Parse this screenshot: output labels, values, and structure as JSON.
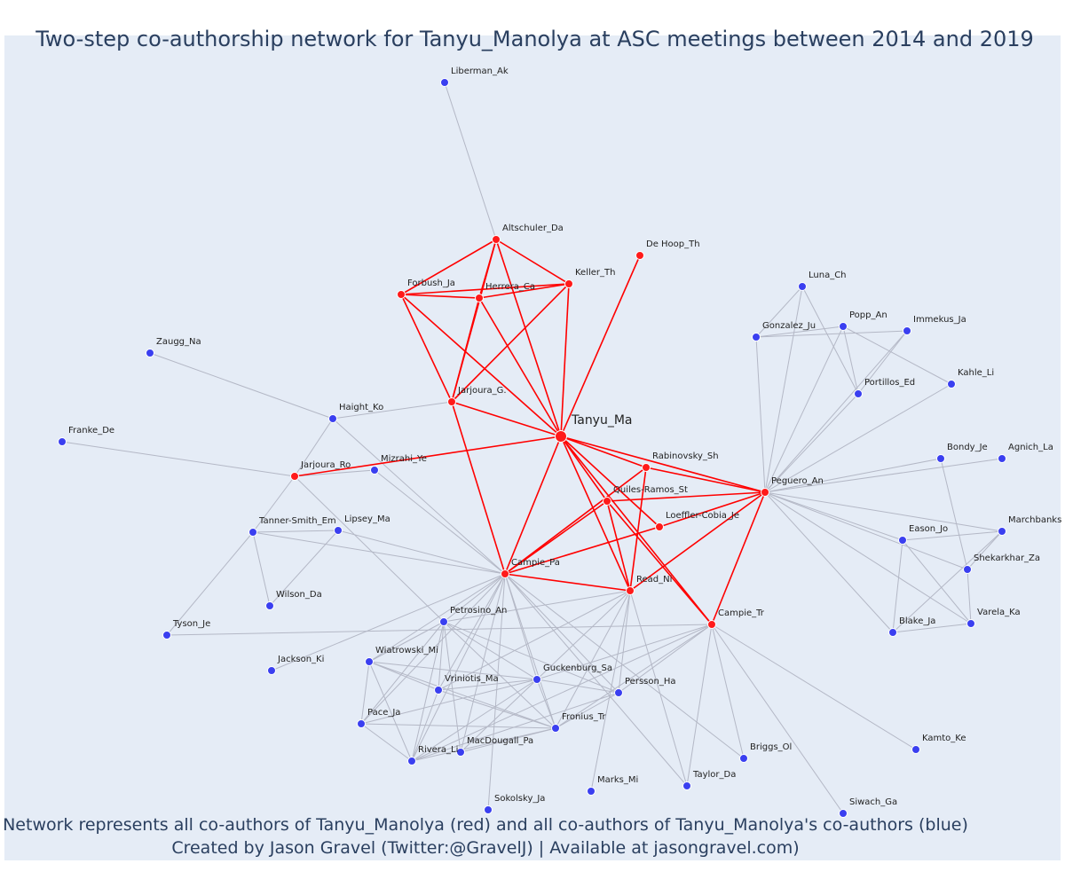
{
  "title": "Two-step co-authorship network for Tanyu_Manolya at ASC meetings between 2014 and 2019",
  "caption_line1": "Network represents all co-authors of Tanyu_Manolya (red) and all co-authors of Tanyu_Manolya's co-authors (blue)",
  "caption_line2": "Created by Jason Gravel (Twitter:@GravelJ) | Available at jasongravel.com)",
  "colors": {
    "background": "#e5ecf6",
    "coauthor": "#ff1a1a",
    "second_step": "#3a3ff0",
    "red_edge": "#ff0000",
    "gray_edge": "#b4b8c6",
    "node_outline": "#ffffff",
    "text": "#2a3f5f"
  },
  "nodes": [
    {
      "id": "Tanyu_Ma",
      "group": "center"
    },
    {
      "id": "Liberman_Ak",
      "group": "blue"
    },
    {
      "id": "Altschuler_Da",
      "group": "red"
    },
    {
      "id": "De Hoop_Th",
      "group": "red"
    },
    {
      "id": "Keller_Th",
      "group": "red"
    },
    {
      "id": "Forbush_Ja",
      "group": "red"
    },
    {
      "id": "Herrera_Ca",
      "group": "red"
    },
    {
      "id": "Jarjoura_G.",
      "group": "red"
    },
    {
      "id": "Zaugg_Na",
      "group": "blue"
    },
    {
      "id": "Haight_Ko",
      "group": "blue"
    },
    {
      "id": "Franke_De",
      "group": "blue"
    },
    {
      "id": "Jarjoura_Ro",
      "group": "red"
    },
    {
      "id": "Mizrahi_Ye",
      "group": "blue"
    },
    {
      "id": "Tanner-Smith_Em",
      "group": "blue"
    },
    {
      "id": "Lipsey_Ma",
      "group": "blue"
    },
    {
      "id": "Wilson_Da",
      "group": "blue"
    },
    {
      "id": "Tyson_Je",
      "group": "blue"
    },
    {
      "id": "Jackson_Ki",
      "group": "blue"
    },
    {
      "id": "Campie_Pa",
      "group": "red"
    },
    {
      "id": "Petrosino_An",
      "group": "blue"
    },
    {
      "id": "Wiatrowski_Mi",
      "group": "blue"
    },
    {
      "id": "Vriniotis_Ma",
      "group": "blue"
    },
    {
      "id": "Guckenburg_Sa",
      "group": "blue"
    },
    {
      "id": "Pace_Ja",
      "group": "blue"
    },
    {
      "id": "Fronius_Tr",
      "group": "blue"
    },
    {
      "id": "MacDougall_Pa",
      "group": "blue"
    },
    {
      "id": "Rivera_Li",
      "group": "blue"
    },
    {
      "id": "Sokolsky_Ja",
      "group": "blue"
    },
    {
      "id": "Marks_Mi",
      "group": "blue"
    },
    {
      "id": "Taylor_Da",
      "group": "blue"
    },
    {
      "id": "Briggs_Ol",
      "group": "blue"
    },
    {
      "id": "Persson_Ha",
      "group": "blue"
    },
    {
      "id": "Read_Ni",
      "group": "red"
    },
    {
      "id": "Campie_Tr",
      "group": "red"
    },
    {
      "id": "Rabinovsky_Sh",
      "group": "red"
    },
    {
      "id": "Quiles-Ramos_St",
      "group": "red"
    },
    {
      "id": "Loeffler-Cobia_Je",
      "group": "red"
    },
    {
      "id": "Peguero_An",
      "group": "red"
    },
    {
      "id": "Luna_Ch",
      "group": "blue"
    },
    {
      "id": "Popp_An",
      "group": "blue"
    },
    {
      "id": "Immekus_Ja",
      "group": "blue"
    },
    {
      "id": "Gonzalez_Ju",
      "group": "blue"
    },
    {
      "id": "Portillos_Ed",
      "group": "blue"
    },
    {
      "id": "Kahle_Li",
      "group": "blue"
    },
    {
      "id": "Bondy_Je",
      "group": "blue"
    },
    {
      "id": "Agnich_La",
      "group": "blue"
    },
    {
      "id": "Eason_Jo",
      "group": "blue"
    },
    {
      "id": "Marchbanks",
      "group": "blue"
    },
    {
      "id": "Shekarkhar_Za",
      "group": "blue"
    },
    {
      "id": "Blake_Ja",
      "group": "blue"
    },
    {
      "id": "Varela_Ka",
      "group": "blue"
    },
    {
      "id": "Kamto_Ke",
      "group": "blue"
    },
    {
      "id": "Siwach_Ga",
      "group": "blue"
    }
  ],
  "edges": [
    [
      "Tanyu_Ma",
      "Altschuler_Da"
    ],
    [
      "Tanyu_Ma",
      "De Hoop_Th"
    ],
    [
      "Tanyu_Ma",
      "Keller_Th"
    ],
    [
      "Tanyu_Ma",
      "Forbush_Ja"
    ],
    [
      "Tanyu_Ma",
      "Herrera_Ca"
    ],
    [
      "Tanyu_Ma",
      "Jarjoura_G."
    ],
    [
      "Tanyu_Ma",
      "Jarjoura_Ro"
    ],
    [
      "Tanyu_Ma",
      "Campie_Pa"
    ],
    [
      "Tanyu_Ma",
      "Read_Ni"
    ],
    [
      "Tanyu_Ma",
      "Campie_Tr"
    ],
    [
      "Tanyu_Ma",
      "Rabinovsky_Sh"
    ],
    [
      "Tanyu_Ma",
      "Quiles-Ramos_St"
    ],
    [
      "Tanyu_Ma",
      "Loeffler-Cobia_Je"
    ],
    [
      "Tanyu_Ma",
      "Peguero_An"
    ],
    [
      "Altschuler_Da",
      "Forbush_Ja"
    ],
    [
      "Altschuler_Da",
      "Herrera_Ca"
    ],
    [
      "Altschuler_Da",
      "Keller_Th"
    ],
    [
      "Altschuler_Da",
      "Jarjoura_G."
    ],
    [
      "Forbush_Ja",
      "Herrera_Ca"
    ],
    [
      "Forbush_Ja",
      "Keller_Th"
    ],
    [
      "Forbush_Ja",
      "Jarjoura_G."
    ],
    [
      "Herrera_Ca",
      "Keller_Th"
    ],
    [
      "Herrera_Ca",
      "Jarjoura_G."
    ],
    [
      "Keller_Th",
      "Jarjoura_G."
    ],
    [
      "Jarjoura_G.",
      "Campie_Pa"
    ],
    [
      "Campie_Pa",
      "Read_Ni"
    ],
    [
      "Campie_Pa",
      "Quiles-Ramos_St"
    ],
    [
      "Campie_Pa",
      "Loeffler-Cobia_Je"
    ],
    [
      "Campie_Pa",
      "Rabinovsky_Sh"
    ],
    [
      "Read_Ni",
      "Quiles-Ramos_St"
    ],
    [
      "Read_Ni",
      "Rabinovsky_Sh"
    ],
    [
      "Read_Ni",
      "Peguero_An"
    ],
    [
      "Quiles-Ramos_St",
      "Peguero_An"
    ],
    [
      "Quiles-Ramos_St",
      "Campie_Tr"
    ],
    [
      "Rabinovsky_Sh",
      "Peguero_An"
    ],
    [
      "Loeffler-Cobia_Je",
      "Peguero_An"
    ],
    [
      "Campie_Tr",
      "Peguero_An"
    ],
    [
      "Liberman_Ak",
      "Altschuler_Da"
    ],
    [
      "Zaugg_Na",
      "Haight_Ko"
    ],
    [
      "Haight_Ko",
      "Jarjoura_G."
    ],
    [
      "Haight_Ko",
      "Jarjoura_Ro"
    ],
    [
      "Haight_Ko",
      "Campie_Pa"
    ],
    [
      "Franke_De",
      "Jarjoura_Ro"
    ],
    [
      "Jarjoura_Ro",
      "Mizrahi_Ye"
    ],
    [
      "Jarjoura_Ro",
      "Tanner-Smith_Em"
    ],
    [
      "Jarjoura_Ro",
      "Petrosino_An"
    ],
    [
      "Tanner-Smith_Em",
      "Lipsey_Ma"
    ],
    [
      "Tanner-Smith_Em",
      "Wilson_Da"
    ],
    [
      "Tanner-Smith_Em",
      "Tyson_Je"
    ],
    [
      "Tanner-Smith_Em",
      "Campie_Pa"
    ],
    [
      "Lipsey_Ma",
      "Wilson_Da"
    ],
    [
      "Lipsey_Ma",
      "Campie_Pa"
    ],
    [
      "Tyson_Je",
      "Campie_Tr"
    ],
    [
      "Jackson_Ki",
      "Campie_Pa"
    ],
    [
      "Mizrahi_Ye",
      "Campie_Pa"
    ],
    [
      "Campie_Pa",
      "Petrosino_An"
    ],
    [
      "Campie_Pa",
      "Wiatrowski_Mi"
    ],
    [
      "Campie_Pa",
      "Vriniotis_Ma"
    ],
    [
      "Campie_Pa",
      "Guckenburg_Sa"
    ],
    [
      "Campie_Pa",
      "Pace_Ja"
    ],
    [
      "Campie_Pa",
      "Fronius_Tr"
    ],
    [
      "Campie_Pa",
      "MacDougall_Pa"
    ],
    [
      "Campie_Pa",
      "Rivera_Li"
    ],
    [
      "Campie_Pa",
      "Sokolsky_Ja"
    ],
    [
      "Campie_Pa",
      "Persson_Ha"
    ],
    [
      "Campie_Pa",
      "Taylor_Da"
    ],
    [
      "Campie_Pa",
      "Briggs_Ol"
    ],
    [
      "Read_Ni",
      "Petrosino_An"
    ],
    [
      "Read_Ni",
      "Guckenburg_Sa"
    ],
    [
      "Read_Ni",
      "Fronius_Tr"
    ],
    [
      "Read_Ni",
      "Persson_Ha"
    ],
    [
      "Read_Ni",
      "Taylor_Da"
    ],
    [
      "Read_Ni",
      "Marks_Mi"
    ],
    [
      "Read_Ni",
      "Vriniotis_Ma"
    ],
    [
      "Campie_Tr",
      "Guckenburg_Sa"
    ],
    [
      "Campie_Tr",
      "Fronius_Tr"
    ],
    [
      "Campie_Tr",
      "Persson_Ha"
    ],
    [
      "Campie_Tr",
      "Taylor_Da"
    ],
    [
      "Campie_Tr",
      "Briggs_Ol"
    ],
    [
      "Campie_Tr",
      "Kamto_Ke"
    ],
    [
      "Campie_Tr",
      "Siwach_Ga"
    ],
    [
      "Campie_Tr",
      "Rivera_Li"
    ],
    [
      "Petrosino_An",
      "Wiatrowski_Mi"
    ],
    [
      "Petrosino_An",
      "Vriniotis_Ma"
    ],
    [
      "Petrosino_An",
      "Guckenburg_Sa"
    ],
    [
      "Petrosino_An",
      "Pace_Ja"
    ],
    [
      "Petrosino_An",
      "Fronius_Tr"
    ],
    [
      "Petrosino_An",
      "MacDougall_Pa"
    ],
    [
      "Petrosino_An",
      "Rivera_Li"
    ],
    [
      "Petrosino_An",
      "Persson_Ha"
    ],
    [
      "Wiatrowski_Mi",
      "Pace_Ja"
    ],
    [
      "Wiatrowski_Mi",
      "Rivera_Li"
    ],
    [
      "Wiatrowski_Mi",
      "Fronius_Tr"
    ],
    [
      "Wiatrowski_Mi",
      "Vriniotis_Ma"
    ],
    [
      "Wiatrowski_Mi",
      "Guckenburg_Sa"
    ],
    [
      "Vriniotis_Ma",
      "Guckenburg_Sa"
    ],
    [
      "Vriniotis_Ma",
      "Fronius_Tr"
    ],
    [
      "Vriniotis_Ma",
      "Rivera_Li"
    ],
    [
      "Guckenburg_Sa",
      "Fronius_Tr"
    ],
    [
      "Guckenburg_Sa",
      "Pace_Ja"
    ],
    [
      "Guckenburg_Sa",
      "Rivera_Li"
    ],
    [
      "Guckenburg_Sa",
      "MacDougall_Pa"
    ],
    [
      "Guckenburg_Sa",
      "Persson_Ha"
    ],
    [
      "Pace_Ja",
      "Rivera_Li"
    ],
    [
      "Pace_Ja",
      "Fronius_Tr"
    ],
    [
      "Fronius_Tr",
      "Rivera_Li"
    ],
    [
      "Fronius_Tr",
      "MacDougall_Pa"
    ],
    [
      "Fronius_Tr",
      "Persson_Ha"
    ],
    [
      "Rivera_Li",
      "Persson_Ha"
    ],
    [
      "Peguero_An",
      "Luna_Ch"
    ],
    [
      "Peguero_An",
      "Popp_An"
    ],
    [
      "Peguero_An",
      "Immekus_Ja"
    ],
    [
      "Peguero_An",
      "Gonzalez_Ju"
    ],
    [
      "Peguero_An",
      "Portillos_Ed"
    ],
    [
      "Peguero_An",
      "Kahle_Li"
    ],
    [
      "Peguero_An",
      "Bondy_Je"
    ],
    [
      "Peguero_An",
      "Agnich_La"
    ],
    [
      "Peguero_An",
      "Eason_Jo"
    ],
    [
      "Peguero_An",
      "Marchbanks"
    ],
    [
      "Peguero_An",
      "Shekarkhar_Za"
    ],
    [
      "Peguero_An",
      "Blake_Ja"
    ],
    [
      "Peguero_An",
      "Varela_Ka"
    ],
    [
      "Luna_Ch",
      "Gonzalez_Ju"
    ],
    [
      "Luna_Ch",
      "Portillos_Ed"
    ],
    [
      "Gonzalez_Ju",
      "Immekus_Ja"
    ],
    [
      "Gonzalez_Ju",
      "Popp_An"
    ],
    [
      "Popp_An",
      "Kahle_Li"
    ],
    [
      "Popp_An",
      "Portillos_Ed"
    ],
    [
      "Immekus_Ja",
      "Portillos_Ed"
    ],
    [
      "Bondy_Je",
      "Shekarkhar_Za"
    ],
    [
      "Eason_Jo",
      "Marchbanks"
    ],
    [
      "Eason_Jo",
      "Varela_Ka"
    ],
    [
      "Eason_Jo",
      "Blake_Ja"
    ],
    [
      "Marchbanks",
      "Shekarkhar_Za"
    ],
    [
      "Marchbanks",
      "Blake_Ja"
    ],
    [
      "Shekarkhar_Za",
      "Varela_Ka"
    ],
    [
      "Blake_Ja",
      "Varela_Ka"
    ]
  ]
}
